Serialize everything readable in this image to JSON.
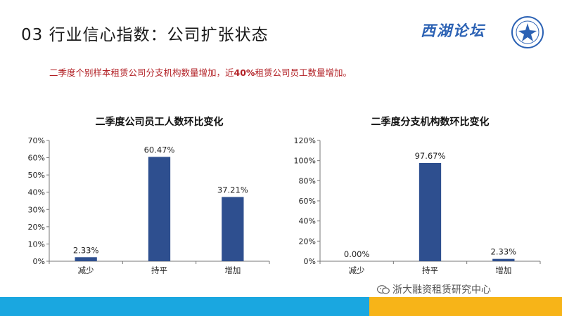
{
  "slide": {
    "title": "03 行业信心指数：公司扩张状态",
    "subtitle_before": "二季度个别样本租赁公司分支机构数量增加，近",
    "subtitle_highlight": "40%",
    "subtitle_after": "租赁公司员工数量增加。"
  },
  "brand": {
    "text": "西湖论坛",
    "logo_icon": "forum-seal-icon"
  },
  "watermark": {
    "text": "浙大融资租赁研究中心",
    "icon": "wechat-icon"
  },
  "colors": {
    "bar": "#2e4f8f",
    "footer_blue": "#1aa7e0",
    "footer_yellow": "#f7b418",
    "subtitle": "#b21f24"
  },
  "chart_data": [
    {
      "type": "bar",
      "title": "二季度公司员工人数环比变化",
      "categories": [
        "减少",
        "持平",
        "增加"
      ],
      "values": [
        2.33,
        60.47,
        37.21
      ],
      "data_labels": [
        "2.33%",
        "60.47%",
        "37.21%"
      ],
      "ylim": [
        0,
        70
      ],
      "yticks": [
        0,
        10,
        20,
        30,
        40,
        50,
        60,
        70
      ],
      "ytick_labels": [
        "0%",
        "10%",
        "20%",
        "30%",
        "40%",
        "50%",
        "60%",
        "70%"
      ],
      "grid": false,
      "xlabel": "",
      "ylabel": ""
    },
    {
      "type": "bar",
      "title": "二季度分支机构数环比变化",
      "categories": [
        "减少",
        "持平",
        "增加"
      ],
      "values": [
        0.0,
        97.67,
        2.33
      ],
      "data_labels": [
        "0.00%",
        "97.67%",
        "2.33%"
      ],
      "ylim": [
        0,
        120
      ],
      "yticks": [
        0,
        20,
        40,
        60,
        80,
        100,
        120
      ],
      "ytick_labels": [
        "0%",
        "20%",
        "40%",
        "60%",
        "80%",
        "100%",
        "120%"
      ],
      "grid": false,
      "xlabel": "",
      "ylabel": ""
    }
  ]
}
